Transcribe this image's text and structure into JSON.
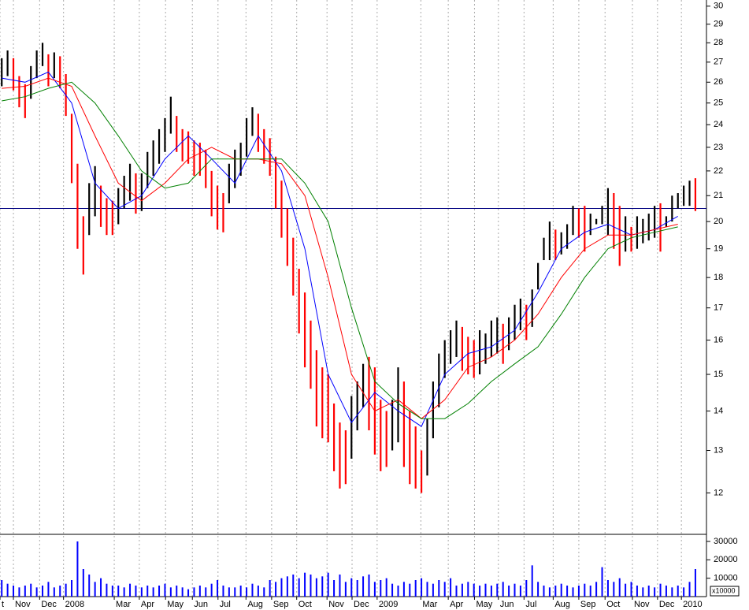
{
  "chart_data": {
    "type": "hilo",
    "x": [
      0,
      1,
      2,
      3,
      4,
      5,
      6,
      7,
      8,
      9,
      10,
      11,
      12,
      13,
      14,
      15,
      16,
      17,
      18,
      19,
      20,
      21,
      22,
      23,
      24,
      25,
      26,
      27,
      28,
      29,
      30,
      31,
      32,
      33,
      34,
      35,
      36,
      37,
      38,
      39,
      40,
      41,
      42,
      43,
      44,
      45,
      46,
      47,
      48,
      49,
      50,
      51,
      52,
      53,
      54,
      55,
      56,
      57,
      58,
      59,
      60,
      61,
      62,
      63,
      64,
      65,
      66,
      67,
      68,
      69,
      70,
      71,
      72,
      73,
      74,
      75,
      76,
      77,
      78,
      79,
      80,
      81,
      82,
      83,
      84,
      85,
      86,
      87,
      88,
      89,
      90,
      91,
      92,
      93,
      94,
      95,
      96,
      97,
      98,
      99,
      100,
      101,
      102,
      103,
      104,
      105,
      106,
      107,
      108,
      109,
      110,
      111,
      112,
      113,
      114,
      115,
      116,
      117,
      118,
      119
    ],
    "high": [
      27.2,
      27.6,
      27.2,
      26.3,
      25.9,
      26.8,
      27.6,
      28,
      27.4,
      27.5,
      27.3,
      26.4,
      24.5,
      22.3,
      20.2,
      21.5,
      22.2,
      21.4,
      20.9,
      20.8,
      21.3,
      21.8,
      22.3,
      21.9,
      21.9,
      22.8,
      23.3,
      23.8,
      24.3,
      25.3,
      24.4,
      23.8,
      23.7,
      23.3,
      23.2,
      22.9,
      22,
      21.4,
      21.1,
      22.3,
      22.9,
      23.2,
      24.3,
      24.8,
      24.5,
      23.8,
      23.4,
      22.6,
      21.6,
      20.5,
      19.4,
      18.3,
      17.5,
      16.6,
      15.7,
      15.2,
      15,
      14.2,
      13.7,
      13.5,
      14.4,
      14.8,
      15.3,
      15.5,
      15.2,
      14.3,
      14,
      14.3,
      15.2,
      14.8,
      14,
      13.6,
      13,
      13.8,
      14.8,
      15.6,
      16,
      16.3,
      16.6,
      16.4,
      16.1,
      16,
      16.3,
      16.2,
      16.6,
      16.7,
      16.5,
      16.7,
      17.1,
      17.3,
      17.1,
      17.6,
      18.5,
      19.4,
      20,
      19.7,
      19.6,
      19.9,
      20.6,
      20.5,
      20.6,
      20.3,
      20.1,
      20.6,
      21.3,
      21.1,
      20.6,
      20.2,
      19.8,
      20.2,
      20.1,
      20.3,
      20.6,
      20.7,
      20.2,
      21,
      21.1,
      21.4,
      21.6,
      21.7
    ],
    "low": [
      25.8,
      26.3,
      25.6,
      24.8,
      24.3,
      25.2,
      26.2,
      26.8,
      25.8,
      26.2,
      25.7,
      24.4,
      21.5,
      19,
      18.1,
      19.5,
      20.2,
      19.8,
      19.5,
      19.5,
      19.9,
      20.5,
      20.8,
      20.3,
      20.4,
      21.3,
      21.8,
      22.3,
      22.8,
      23.6,
      22.8,
      22.4,
      22.3,
      21.8,
      21.8,
      21.3,
      20.2,
      19.7,
      19.6,
      20.7,
      21.3,
      21.8,
      22.6,
      23.5,
      22.8,
      22.3,
      21.8,
      20.5,
      19.4,
      18.4,
      17.4,
      16.2,
      15.2,
      14.6,
      13.6,
      13.3,
      13.2,
      12.5,
      12.1,
      12.2,
      12.8,
      13.5,
      14.1,
      13.5,
      12.9,
      12.5,
      12.6,
      13,
      13.2,
      12.6,
      12.2,
      12.1,
      12,
      12.4,
      13.3,
      14.1,
      14.9,
      15.3,
      15.5,
      15.1,
      15,
      14.9,
      15,
      15.3,
      15.5,
      15.6,
      15.3,
      15.7,
      16,
      16.3,
      16,
      16.4,
      17.6,
      18.6,
      18.6,
      18.6,
      18.8,
      19,
      19.5,
      19.4,
      18.9,
      19.5,
      19.9,
      19.9,
      19.5,
      19,
      18.4,
      18.9,
      18.9,
      19,
      19.2,
      19.3,
      19.4,
      18.9,
      19.8,
      20,
      20.5,
      20.6,
      20.6,
      20.4
    ],
    "up_color": "#000000",
    "down_color": "#ff0000",
    "series": [
      {
        "color": "#0000ff",
        "x": [
          0,
          4,
          8,
          12,
          16,
          20,
          24,
          28,
          32,
          36,
          40,
          44,
          48,
          52,
          56,
          60,
          64,
          68,
          72,
          76,
          80,
          84,
          88,
          92,
          96,
          100,
          104,
          108,
          112,
          116
        ],
        "values": [
          26.2,
          26,
          26.5,
          25,
          21.5,
          20.5,
          21,
          22.5,
          23.5,
          22.5,
          21.5,
          23.5,
          22,
          19,
          15,
          13.7,
          14.5,
          14,
          13.6,
          15,
          15.6,
          15.8,
          16.3,
          17.5,
          19,
          19.6,
          19.9,
          19.5,
          19.7,
          20.2
        ]
      },
      {
        "color": "#ff0000",
        "x": [
          0,
          4,
          8,
          12,
          16,
          20,
          24,
          28,
          32,
          36,
          40,
          44,
          48,
          52,
          56,
          60,
          64,
          68,
          72,
          76,
          80,
          84,
          88,
          92,
          96,
          100,
          104,
          108,
          112,
          116
        ],
        "values": [
          25.7,
          25.8,
          26.2,
          25.8,
          23.5,
          21.5,
          20.8,
          21.5,
          22.5,
          23,
          22.5,
          22.5,
          22.3,
          21,
          18,
          15,
          14,
          14.3,
          13.8,
          14.3,
          15.2,
          15.5,
          16,
          16.8,
          18,
          19,
          19.5,
          19.5,
          19.7,
          19.9
        ]
      },
      {
        "color": "#008000",
        "x": [
          0,
          4,
          8,
          12,
          16,
          20,
          24,
          28,
          32,
          36,
          40,
          44,
          48,
          52,
          56,
          60,
          64,
          68,
          72,
          76,
          80,
          84,
          88,
          92,
          96,
          100,
          104,
          108,
          112,
          116
        ],
        "values": [
          25.1,
          25.3,
          25.7,
          26,
          25,
          23.5,
          22,
          21.3,
          21.5,
          22.5,
          22.5,
          22.5,
          22.5,
          21.5,
          20,
          17,
          14.8,
          14.2,
          13.8,
          13.8,
          14.2,
          14.8,
          15.3,
          15.8,
          16.8,
          18,
          19,
          19.4,
          19.6,
          19.8
        ]
      }
    ],
    "hline": 20.5,
    "hline_color": "#000080",
    "log_y": true,
    "xlim": [
      -0.3,
      120.9
    ],
    "ylim": [
      11.1,
      30.35
    ],
    "yticks": [
      12,
      13,
      14,
      15,
      16,
      17,
      18,
      19,
      20,
      21,
      22,
      23,
      24,
      25,
      26,
      27,
      28,
      29,
      30
    ],
    "xticks": [
      {
        "value": -0.3,
        "label": "t"
      },
      {
        "value": 2.0,
        "label": "Nov"
      },
      {
        "value": 6.5,
        "label": "Dec"
      },
      {
        "value": 10.6,
        "label": "2008"
      },
      {
        "value": 19.3,
        "label": "Mar"
      },
      {
        "value": 23.6,
        "label": "Apr"
      },
      {
        "value": 28.1,
        "label": "May"
      },
      {
        "value": 32.7,
        "label": "Jun"
      },
      {
        "value": 37.1,
        "label": "Jul"
      },
      {
        "value": 41.9,
        "label": "Aug"
      },
      {
        "value": 46.3,
        "label": "Sep"
      },
      {
        "value": 50.6,
        "label": "Oct"
      },
      {
        "value": 55.8,
        "label": "Nov"
      },
      {
        "value": 60.1,
        "label": "Dec"
      },
      {
        "value": 64.4,
        "label": "2009"
      },
      {
        "value": 71.9,
        "label": "Mar"
      },
      {
        "value": 76.6,
        "label": "Apr"
      },
      {
        "value": 81.1,
        "label": "May"
      },
      {
        "value": 85.2,
        "label": "Jun"
      },
      {
        "value": 89.6,
        "label": "Jul"
      },
      {
        "value": 94.6,
        "label": "Aug"
      },
      {
        "value": 99.0,
        "label": "Sep"
      },
      {
        "value": 103.5,
        "label": "Oct"
      },
      {
        "value": 108.2,
        "label": "Nov"
      },
      {
        "value": 112.5,
        "label": "Dec"
      },
      {
        "value": 116.6,
        "label": "2010"
      }
    ],
    "grid": true,
    "volume": [
      9000,
      7000,
      6000,
      5000,
      6000,
      7000,
      5000,
      6000,
      8000,
      5000,
      6000,
      7000,
      9000,
      30000,
      15000,
      12000,
      8000,
      10000,
      7000,
      6000,
      6000,
      5000,
      7000,
      6000,
      5000,
      6000,
      5000,
      6000,
      7000,
      5000,
      6000,
      5000,
      4000,
      5000,
      6000,
      5000,
      7000,
      9000,
      6000,
      5000,
      5000,
      6000,
      5000,
      7000,
      6000,
      5000,
      9000,
      8000,
      10000,
      11000,
      12000,
      10000,
      13000,
      12000,
      10000,
      11000,
      13000,
      9000,
      12000,
      8000,
      10000,
      9000,
      11000,
      12000,
      8000,
      9000,
      10000,
      7000,
      6000,
      8000,
      7000,
      9000,
      10000,
      8000,
      7000,
      9000,
      8000,
      10000,
      6000,
      7000,
      8000,
      7000,
      6000,
      7000,
      6000,
      7000,
      8000,
      6000,
      7000,
      6000,
      9000,
      17000,
      8000,
      6000,
      5000,
      6000,
      7000,
      6000,
      5000,
      6000,
      7000,
      6000,
      8000,
      16000,
      9000,
      8000,
      10000,
      7000,
      8000,
      6000,
      5000,
      6000,
      5000,
      7000,
      6000,
      5000,
      6000,
      5000,
      8000,
      15000
    ],
    "volume_color": "#0000ff",
    "vylim": [
      0,
      33000
    ],
    "vyticks": [
      10000,
      20000,
      30000
    ],
    "volume_unit": "x10000"
  }
}
